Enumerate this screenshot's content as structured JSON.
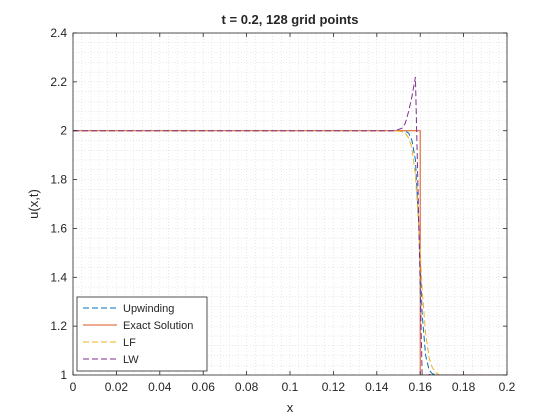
{
  "chart_data": {
    "type": "line",
    "title": "t = 0.2, 128 grid points",
    "xlabel": "x",
    "ylabel": "u(x,t)",
    "xlim": [
      0,
      0.2
    ],
    "ylim": [
      1,
      2.4
    ],
    "xticks": [
      0,
      0.02,
      0.04,
      0.06,
      0.08,
      0.1,
      0.12,
      0.14,
      0.16,
      0.18,
      0.2
    ],
    "xtick_labels": [
      "0",
      "0.02",
      "0.04",
      "0.06",
      "0.08",
      "0.1",
      "0.12",
      "0.14",
      "0.16",
      "0.18",
      "0.2"
    ],
    "yticks": [
      1,
      1.2,
      1.4,
      1.6,
      1.8,
      2,
      2.2,
      2.4
    ],
    "ytick_labels": [
      "1",
      "1.2",
      "1.4",
      "1.6",
      "1.8",
      "2",
      "2.2",
      "2.4"
    ],
    "grid": "on (minor dotted)",
    "legend_location": "bottom-left",
    "series": [
      {
        "name": "Upwinding",
        "color": "#0072BD",
        "style": "dashed",
        "x": [
          0,
          0.15,
          0.1531,
          0.1547,
          0.1562,
          0.1578,
          0.1594,
          0.1609,
          0.1625,
          0.1641,
          0.1656,
          0.168,
          0.2
        ],
        "y": [
          2,
          2,
          1.998,
          1.99,
          1.96,
          1.88,
          1.6,
          1.25,
          1.08,
          1.02,
          1.005,
          1.0,
          1.0
        ]
      },
      {
        "name": "Exact Solution",
        "color": "#D95319",
        "style": "solid",
        "x": [
          0,
          0.16,
          0.16,
          0.2
        ],
        "y": [
          2,
          2,
          1,
          1
        ]
      },
      {
        "name": "LF",
        "color": "#EDB120",
        "style": "dashed",
        "x": [
          0,
          0.148,
          0.1516,
          0.1531,
          0.1547,
          0.1562,
          0.1578,
          0.1594,
          0.1609,
          0.1625,
          0.1641,
          0.1656,
          0.1672,
          0.1688,
          0.2
        ],
        "y": [
          2,
          2,
          1.997,
          1.99,
          1.97,
          1.93,
          1.82,
          1.6,
          1.35,
          1.17,
          1.07,
          1.03,
          1.01,
          1.0,
          1.0
        ]
      },
      {
        "name": "LW",
        "color": "#7E2F8E",
        "style": "dashed",
        "x": [
          0,
          0.148,
          0.15,
          0.1516,
          0.1531,
          0.1547,
          0.1562,
          0.1578,
          0.1594,
          0.1609,
          0.1625,
          0.1641,
          0.1656,
          0.1672,
          0.2
        ],
        "y": [
          2,
          2,
          2.005,
          2.01,
          2.03,
          2.08,
          2.14,
          2.22,
          1.6,
          1.0,
          0.995,
          1.002,
          1.0,
          1.0,
          1.0
        ]
      }
    ]
  }
}
